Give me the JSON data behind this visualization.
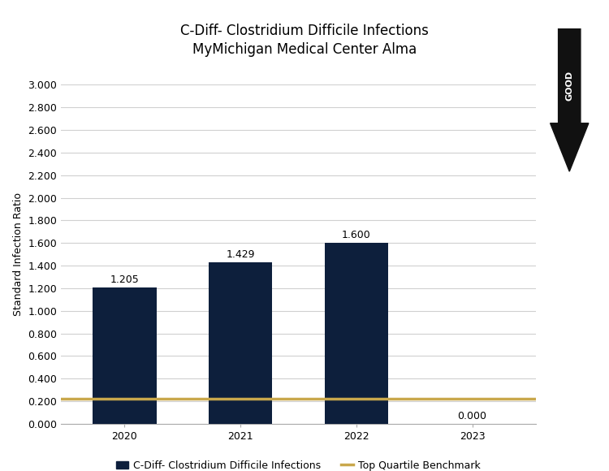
{
  "title_line1": "C-Diff- Clostridium Difficile Infections",
  "title_line2": "MyMichigan Medical Center Alma",
  "categories": [
    "2020",
    "2021",
    "2022",
    "2023"
  ],
  "values": [
    1.205,
    1.429,
    1.6,
    0.0
  ],
  "bar_color": "#0d1f3c",
  "benchmark_value": 0.225,
  "benchmark_color": "#c9a84c",
  "ylabel": "Standard Infection Ratio",
  "ylim": [
    0.0,
    3.0
  ],
  "yticks": [
    0.0,
    0.2,
    0.4,
    0.6,
    0.8,
    1.0,
    1.2,
    1.4,
    1.6,
    1.8,
    2.0,
    2.2,
    2.4,
    2.6,
    2.8,
    3.0
  ],
  "legend_bar_label": "C-Diff- Clostridium Difficile Infections",
  "legend_line_label": "Top Quartile Benchmark",
  "good_arrow_color": "#111111",
  "background_color": "#ffffff",
  "grid_color": "#d0d0d0",
  "bar_width": 0.55,
  "title_fontsize": 12,
  "ylabel_fontsize": 9,
  "tick_fontsize": 9,
  "label_fontsize": 9
}
